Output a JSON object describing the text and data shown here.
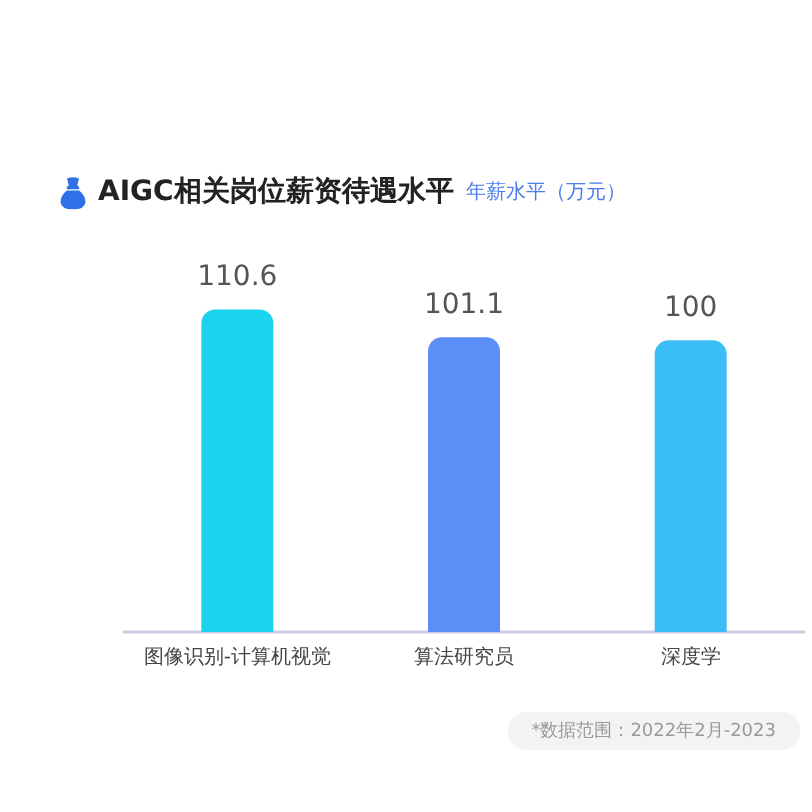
{
  "chart_data": {
    "type": "bar",
    "title": "AIGC相关岗位薪资待遇水平",
    "subtitle": "年薪水平（万元）",
    "categories": [
      "图像识别-计算机视觉",
      "算法研究员",
      "深度学"
    ],
    "values": [
      110.6,
      101.1,
      100
    ],
    "colors": [
      "#1bd3ef",
      "#5b8ff7",
      "#3bbdf6"
    ],
    "data_labels": true,
    "annotations": [
      "*数据范围：2022年2月-2023"
    ]
  }
}
